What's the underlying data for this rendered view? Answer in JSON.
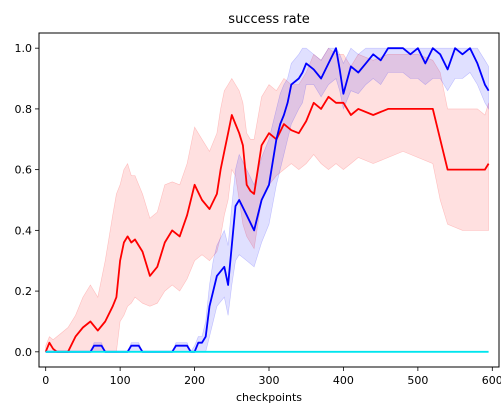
{
  "chart_data": {
    "type": "line",
    "title": "success rate",
    "xlabel": "checkpoints",
    "ylabel": "",
    "xlim": [
      -9,
      609
    ],
    "ylim": [
      -0.05,
      1.05
    ],
    "xticks": [
      0,
      100,
      200,
      300,
      400,
      500,
      600
    ],
    "xtick_labels": [
      "0",
      "100",
      "200",
      "300",
      "400",
      "500",
      "600"
    ],
    "yticks": [
      0.0,
      0.2,
      0.4,
      0.6,
      0.8,
      1.0
    ],
    "ytick_labels": [
      "0.0",
      "0.2",
      "0.4",
      "0.6",
      "0.8",
      "1.0"
    ],
    "grid": false,
    "legend": "none",
    "series": [
      {
        "color": "#ff0000",
        "band_color": "#ff0000",
        "x": [
          0,
          5,
          10,
          15,
          20,
          30,
          40,
          50,
          60,
          70,
          80,
          90,
          95,
          100,
          105,
          110,
          115,
          120,
          125,
          130,
          140,
          150,
          160,
          170,
          180,
          190,
          200,
          210,
          220,
          230,
          235,
          240,
          245,
          250,
          255,
          260,
          265,
          270,
          275,
          280,
          290,
          300,
          310,
          320,
          330,
          340,
          350,
          360,
          370,
          380,
          390,
          400,
          410,
          420,
          440,
          460,
          480,
          500,
          520,
          530,
          540,
          560,
          580,
          590,
          595
        ],
        "y": [
          0.0,
          0.03,
          0.01,
          0.0,
          0.0,
          0.0,
          0.05,
          0.08,
          0.1,
          0.07,
          0.1,
          0.15,
          0.18,
          0.3,
          0.36,
          0.38,
          0.36,
          0.37,
          0.35,
          0.33,
          0.25,
          0.28,
          0.36,
          0.4,
          0.38,
          0.45,
          0.55,
          0.5,
          0.47,
          0.52,
          0.6,
          0.66,
          0.72,
          0.78,
          0.75,
          0.72,
          0.68,
          0.55,
          0.53,
          0.52,
          0.68,
          0.72,
          0.7,
          0.75,
          0.73,
          0.72,
          0.76,
          0.82,
          0.8,
          0.84,
          0.82,
          0.82,
          0.78,
          0.8,
          0.78,
          0.8,
          0.8,
          0.8,
          0.8,
          0.7,
          0.6,
          0.6,
          0.6,
          0.6,
          0.62
        ],
        "lower": [
          0.0,
          0.0,
          0.0,
          0.0,
          0.0,
          0.0,
          0.0,
          0.0,
          0.0,
          0.0,
          0.0,
          0.0,
          0.0,
          0.1,
          0.12,
          0.15,
          0.16,
          0.18,
          0.17,
          0.16,
          0.15,
          0.16,
          0.2,
          0.22,
          0.2,
          0.24,
          0.3,
          0.32,
          0.3,
          0.33,
          0.38,
          0.45,
          0.5,
          0.6,
          0.58,
          0.5,
          0.42,
          0.38,
          0.36,
          0.34,
          0.5,
          0.55,
          0.58,
          0.6,
          0.62,
          0.6,
          0.62,
          0.65,
          0.62,
          0.6,
          0.62,
          0.6,
          0.62,
          0.64,
          0.62,
          0.64,
          0.66,
          0.64,
          0.62,
          0.5,
          0.42,
          0.4,
          0.4,
          0.4,
          0.4
        ],
        "upper": [
          0.02,
          0.05,
          0.04,
          0.05,
          0.06,
          0.08,
          0.12,
          0.18,
          0.22,
          0.18,
          0.3,
          0.45,
          0.52,
          0.55,
          0.6,
          0.62,
          0.58,
          0.58,
          0.55,
          0.52,
          0.44,
          0.46,
          0.55,
          0.56,
          0.55,
          0.62,
          0.74,
          0.7,
          0.66,
          0.72,
          0.8,
          0.86,
          0.88,
          0.9,
          0.88,
          0.86,
          0.82,
          0.72,
          0.7,
          0.7,
          0.84,
          0.88,
          0.86,
          0.9,
          0.88,
          0.88,
          0.92,
          0.98,
          0.96,
          1.0,
          0.98,
          0.98,
          0.94,
          0.98,
          0.96,
          0.98,
          0.98,
          0.98,
          0.96,
          0.92,
          0.8,
          0.8,
          0.8,
          0.78,
          0.82
        ]
      },
      {
        "color": "#0000ff",
        "band_color": "#0000ff",
        "x": [
          0,
          60,
          65,
          75,
          80,
          110,
          115,
          125,
          130,
          170,
          175,
          190,
          195,
          200,
          205,
          210,
          215,
          220,
          225,
          230,
          240,
          245,
          250,
          255,
          260,
          270,
          280,
          290,
          300,
          310,
          315,
          320,
          325,
          330,
          340,
          345,
          350,
          360,
          370,
          380,
          390,
          395,
          400,
          410,
          420,
          430,
          440,
          450,
          460,
          470,
          480,
          490,
          500,
          510,
          520,
          530,
          540,
          550,
          560,
          570,
          580,
          590,
          595
        ],
        "y": [
          0.0,
          0.0,
          0.02,
          0.02,
          0.0,
          0.0,
          0.02,
          0.02,
          0.0,
          0.0,
          0.02,
          0.02,
          0.0,
          0.0,
          0.03,
          0.03,
          0.05,
          0.15,
          0.2,
          0.25,
          0.28,
          0.22,
          0.35,
          0.48,
          0.5,
          0.45,
          0.4,
          0.5,
          0.55,
          0.7,
          0.75,
          0.78,
          0.82,
          0.88,
          0.9,
          0.92,
          0.95,
          0.93,
          0.9,
          0.95,
          1.0,
          0.93,
          0.85,
          0.94,
          0.92,
          0.95,
          0.98,
          0.96,
          1.0,
          1.0,
          1.0,
          0.98,
          1.0,
          0.95,
          1.0,
          0.98,
          0.93,
          1.0,
          0.98,
          1.0,
          0.95,
          0.88,
          0.86
        ],
        "lower": [
          0.0,
          0.0,
          0.0,
          0.0,
          0.0,
          0.0,
          0.0,
          0.0,
          0.0,
          0.0,
          0.0,
          0.0,
          0.0,
          0.0,
          0.0,
          0.0,
          0.0,
          0.05,
          0.1,
          0.15,
          0.18,
          0.12,
          0.22,
          0.3,
          0.32,
          0.3,
          0.28,
          0.36,
          0.42,
          0.55,
          0.6,
          0.65,
          0.7,
          0.75,
          0.8,
          0.82,
          0.88,
          0.88,
          0.84,
          0.88,
          0.9,
          0.86,
          0.8,
          0.86,
          0.85,
          0.88,
          0.9,
          0.88,
          0.92,
          0.92,
          0.92,
          0.9,
          0.9,
          0.88,
          0.9,
          0.9,
          0.86,
          0.9,
          0.9,
          0.92,
          0.88,
          0.82,
          0.8
        ],
        "upper": [
          0.0,
          0.0,
          0.03,
          0.03,
          0.0,
          0.0,
          0.03,
          0.03,
          0.0,
          0.0,
          0.03,
          0.03,
          0.0,
          0.02,
          0.05,
          0.05,
          0.1,
          0.22,
          0.3,
          0.35,
          0.4,
          0.35,
          0.48,
          0.6,
          0.65,
          0.6,
          0.55,
          0.64,
          0.7,
          0.8,
          0.85,
          0.88,
          0.9,
          0.95,
          0.98,
          1.0,
          1.0,
          0.98,
          0.96,
          1.0,
          1.0,
          0.98,
          0.95,
          1.0,
          0.98,
          1.0,
          1.0,
          1.0,
          1.0,
          1.0,
          1.0,
          1.0,
          1.0,
          1.0,
          1.0,
          1.0,
          1.0,
          1.0,
          1.0,
          1.0,
          1.0,
          0.96,
          0.94
        ]
      },
      {
        "color": "#00e5ee",
        "x": [
          0,
          595
        ],
        "y": [
          0.0,
          0.0
        ]
      }
    ]
  }
}
